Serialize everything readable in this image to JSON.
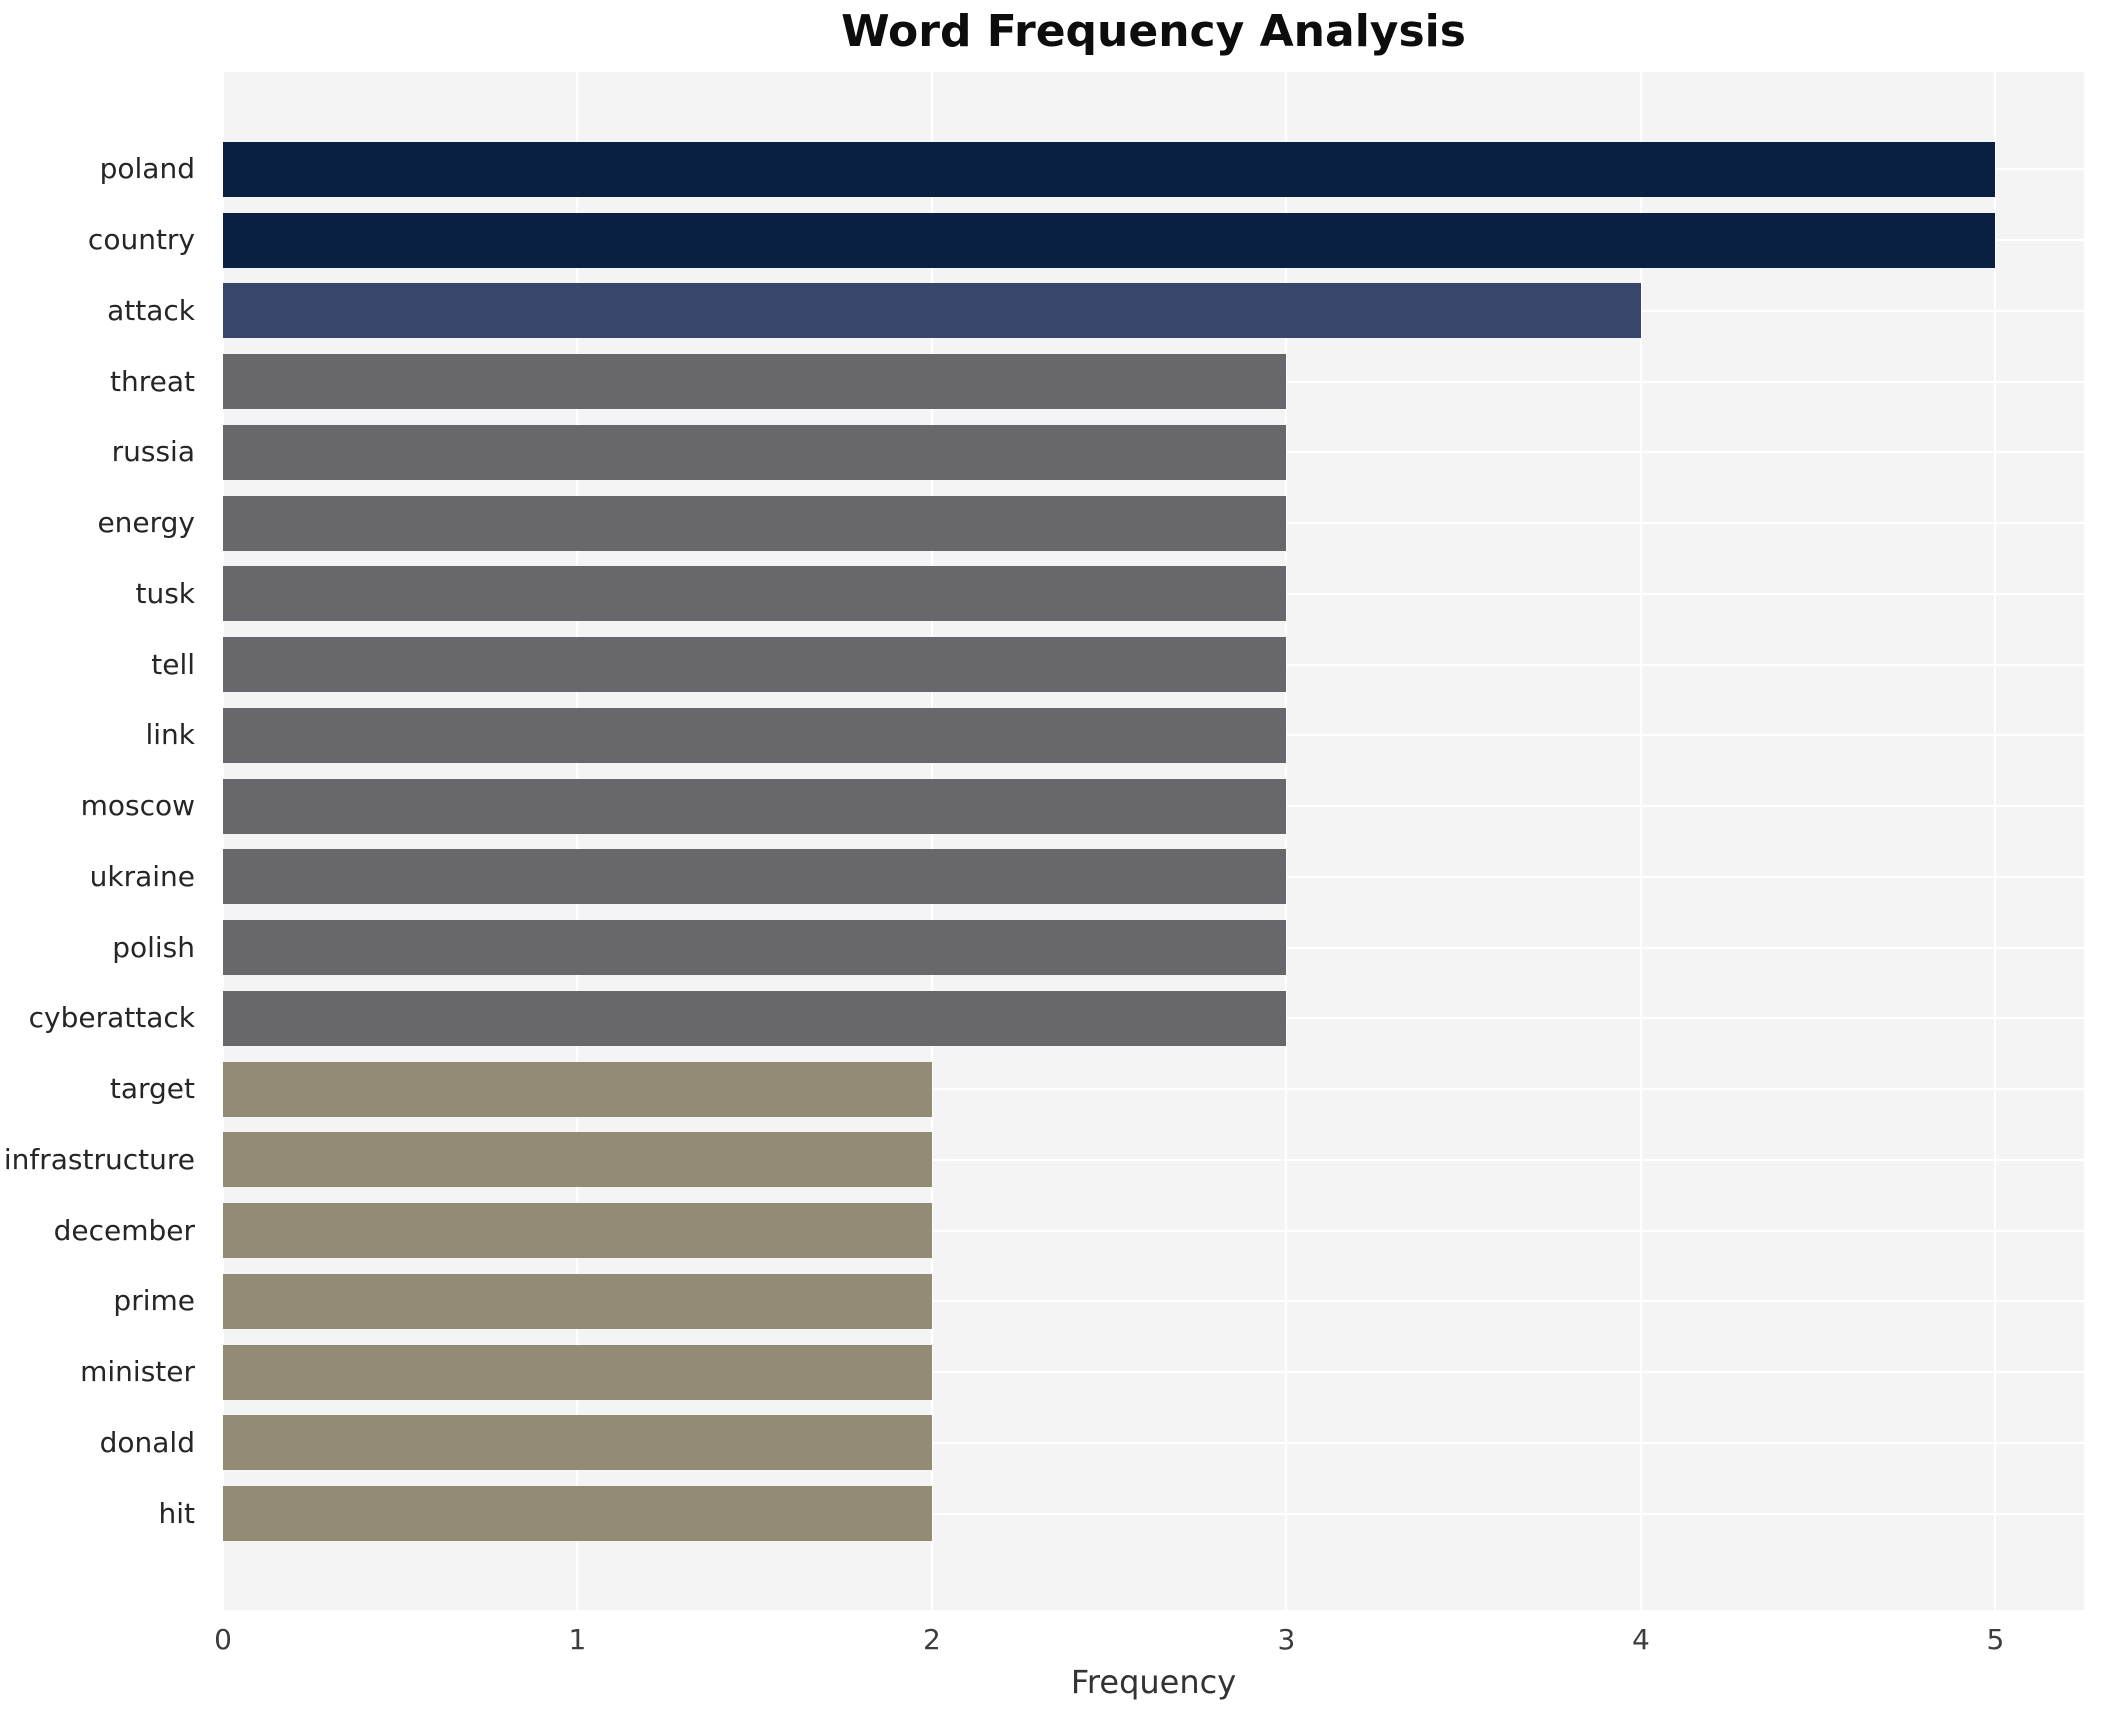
{
  "chart_data": {
    "type": "bar",
    "orientation": "horizontal",
    "title": "Word Frequency Analysis",
    "xlabel": "Frequency",
    "ylabel": "",
    "categories": [
      "poland",
      "country",
      "attack",
      "threat",
      "russia",
      "energy",
      "tusk",
      "tell",
      "link",
      "moscow",
      "ukraine",
      "polish",
      "cyberattack",
      "target",
      "infrastructure",
      "december",
      "prime",
      "minister",
      "donald",
      "hit"
    ],
    "values": [
      5,
      5,
      4,
      3,
      3,
      3,
      3,
      3,
      3,
      3,
      3,
      3,
      3,
      2,
      2,
      2,
      2,
      2,
      2,
      2
    ],
    "xticks": [
      0,
      1,
      2,
      3,
      4,
      5
    ],
    "xlim": [
      0,
      5.25
    ],
    "grid": true,
    "legend": false,
    "value_colors": {
      "5": "#0a2042",
      "4": "#39466b",
      "3": "#67676c",
      "2": "#938c74"
    },
    "plot_bg": "#f5f4f5",
    "grid_color": "#ffffff",
    "title_color": "#0d0d0d",
    "label_color": "#262626",
    "tick_color": "#3d3d3d"
  }
}
